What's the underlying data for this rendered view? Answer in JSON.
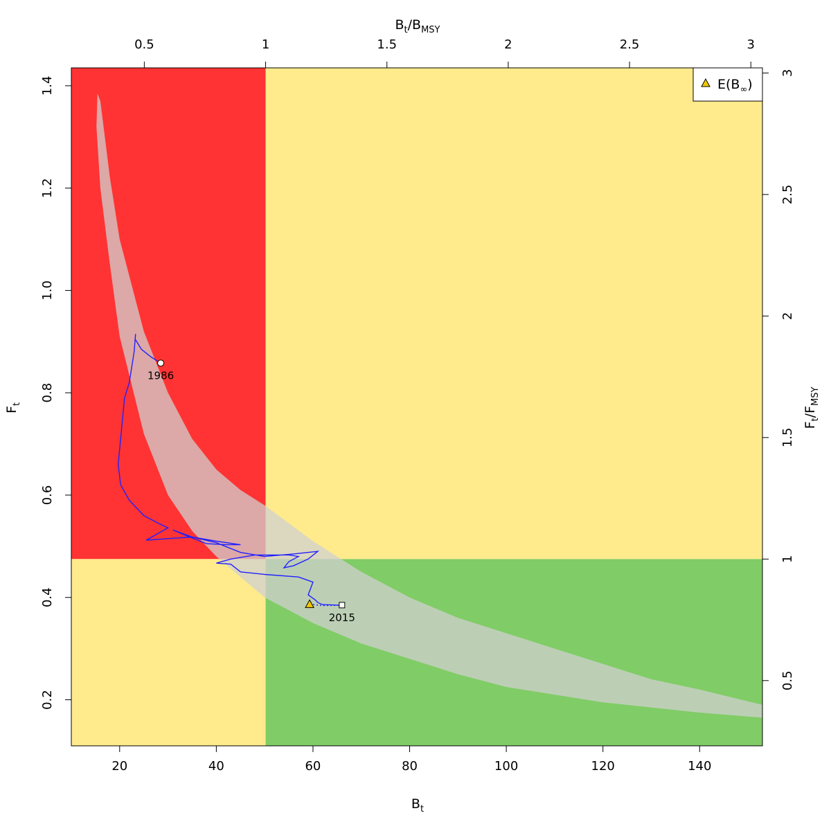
{
  "chart_data": {
    "type": "scatter",
    "xlabel": {
      "main": "B",
      "sub": "t"
    },
    "ylabel": {
      "main": "F",
      "sub": "t"
    },
    "x2label": {
      "main": "B",
      "sub": "t",
      "mid": "/B",
      "sub2": "MSY"
    },
    "y2label": {
      "main": "F",
      "sub": "t",
      "mid": "/F",
      "sub2": "MSY"
    },
    "xlim": [
      10,
      153
    ],
    "ylim": [
      0.11,
      1.435
    ],
    "x_ticks": [
      20,
      40,
      60,
      80,
      100,
      120,
      140
    ],
    "y_ticks": [
      0.2,
      0.4,
      0.6,
      0.8,
      1.0,
      1.2,
      1.4
    ],
    "y_tick_labels": [
      "0.2",
      "0.4",
      "0.6",
      "0.8",
      "1.0",
      "1.2",
      "1.4"
    ],
    "x2_ticks": [
      0.5,
      1,
      1.5,
      2,
      2.5,
      3
    ],
    "x2_tick_labels": [
      "0.5",
      "1",
      "1.5",
      "2",
      "2.5",
      "3"
    ],
    "y2_ticks": [
      0.5,
      1,
      1.5,
      2,
      2.5,
      3
    ],
    "y2_tick_labels": [
      "0.5",
      "1",
      "1.5",
      "2",
      "2.5",
      "3"
    ],
    "Bmsy": 50.2,
    "Fmsy": 0.475,
    "colors": {
      "red": "#ff3333",
      "yellow": "#ffeb8c",
      "green": "#80cc66",
      "band": "#d0d0d0",
      "trajectory": "#2020ff",
      "triangle": "#f0c800"
    },
    "confidence_band": {
      "upper": [
        [
          15.4,
          1.385
        ],
        [
          16,
          1.37
        ],
        [
          18,
          1.22
        ],
        [
          20,
          1.1
        ],
        [
          25,
          0.92
        ],
        [
          30,
          0.8
        ],
        [
          35,
          0.71
        ],
        [
          40,
          0.65
        ],
        [
          45,
          0.61
        ],
        [
          50,
          0.58
        ],
        [
          60,
          0.51
        ],
        [
          70,
          0.45
        ],
        [
          80,
          0.4
        ],
        [
          90,
          0.36
        ],
        [
          100,
          0.33
        ],
        [
          110,
          0.3
        ],
        [
          120,
          0.27
        ],
        [
          130,
          0.24
        ],
        [
          140,
          0.22
        ],
        [
          153,
          0.19
        ]
      ],
      "lower": [
        [
          15.4,
          1.385
        ],
        [
          15.2,
          1.32
        ],
        [
          16,
          1.2
        ],
        [
          18,
          1.05
        ],
        [
          20,
          0.91
        ],
        [
          25,
          0.72
        ],
        [
          30,
          0.6
        ],
        [
          35,
          0.53
        ],
        [
          40,
          0.48
        ],
        [
          45,
          0.44
        ],
        [
          50,
          0.4
        ],
        [
          60,
          0.35
        ],
        [
          70,
          0.31
        ],
        [
          80,
          0.28
        ],
        [
          90,
          0.25
        ],
        [
          100,
          0.225
        ],
        [
          110,
          0.21
        ],
        [
          120,
          0.195
        ],
        [
          130,
          0.185
        ],
        [
          140,
          0.175
        ],
        [
          153,
          0.165
        ]
      ]
    },
    "trajectory": [
      [
        28.5,
        0.858
      ],
      [
        26.5,
        0.87
      ],
      [
        24.5,
        0.885
      ],
      [
        23.2,
        0.905
      ],
      [
        23.3,
        0.915
      ],
      [
        23,
        0.88
      ],
      [
        22,
        0.82
      ],
      [
        21,
        0.79
      ],
      [
        20.3,
        0.72
      ],
      [
        19.7,
        0.66
      ],
      [
        20.2,
        0.62
      ],
      [
        22,
        0.59
      ],
      [
        24,
        0.57
      ],
      [
        25,
        0.56
      ],
      [
        28,
        0.545
      ],
      [
        30,
        0.536
      ],
      [
        27,
        0.52
      ],
      [
        25.5,
        0.512
      ],
      [
        30,
        0.515
      ],
      [
        35,
        0.518
      ],
      [
        40,
        0.51
      ],
      [
        45,
        0.503
      ],
      [
        42,
        0.503
      ],
      [
        38,
        0.505
      ],
      [
        34,
        0.52
      ],
      [
        31,
        0.532
      ],
      [
        35,
        0.518
      ],
      [
        40,
        0.507
      ],
      [
        45,
        0.488
      ],
      [
        50,
        0.48
      ],
      [
        56,
        0.485
      ],
      [
        61,
        0.49
      ],
      [
        59,
        0.475
      ],
      [
        56,
        0.462
      ],
      [
        54,
        0.458
      ],
      [
        55,
        0.47
      ],
      [
        57,
        0.48
      ],
      [
        55,
        0.483
      ],
      [
        48,
        0.483
      ],
      [
        43,
        0.475
      ],
      [
        40,
        0.467
      ],
      [
        43,
        0.465
      ],
      [
        45,
        0.45
      ],
      [
        50,
        0.445
      ],
      [
        57,
        0.44
      ],
      [
        60,
        0.43
      ],
      [
        59,
        0.405
      ],
      [
        60.5,
        0.395
      ],
      [
        61,
        0.39
      ],
      [
        62,
        0.386
      ],
      [
        65,
        0.385
      ],
      [
        66,
        0.385
      ]
    ],
    "projection": [
      [
        59.3,
        0.387
      ],
      [
        62,
        0.384
      ],
      [
        66,
        0.385
      ]
    ],
    "points": [
      {
        "label": "1986",
        "x": 28.5,
        "y": 0.858,
        "shape": "circle"
      },
      {
        "label": "2015",
        "x": 66,
        "y": 0.385,
        "shape": "square"
      }
    ],
    "expected_equilibrium": {
      "x": 59.3,
      "y": 0.387
    },
    "legend": {
      "position": "top-right",
      "label": "E(B",
      "symbol": "∞",
      "close": ")"
    }
  }
}
